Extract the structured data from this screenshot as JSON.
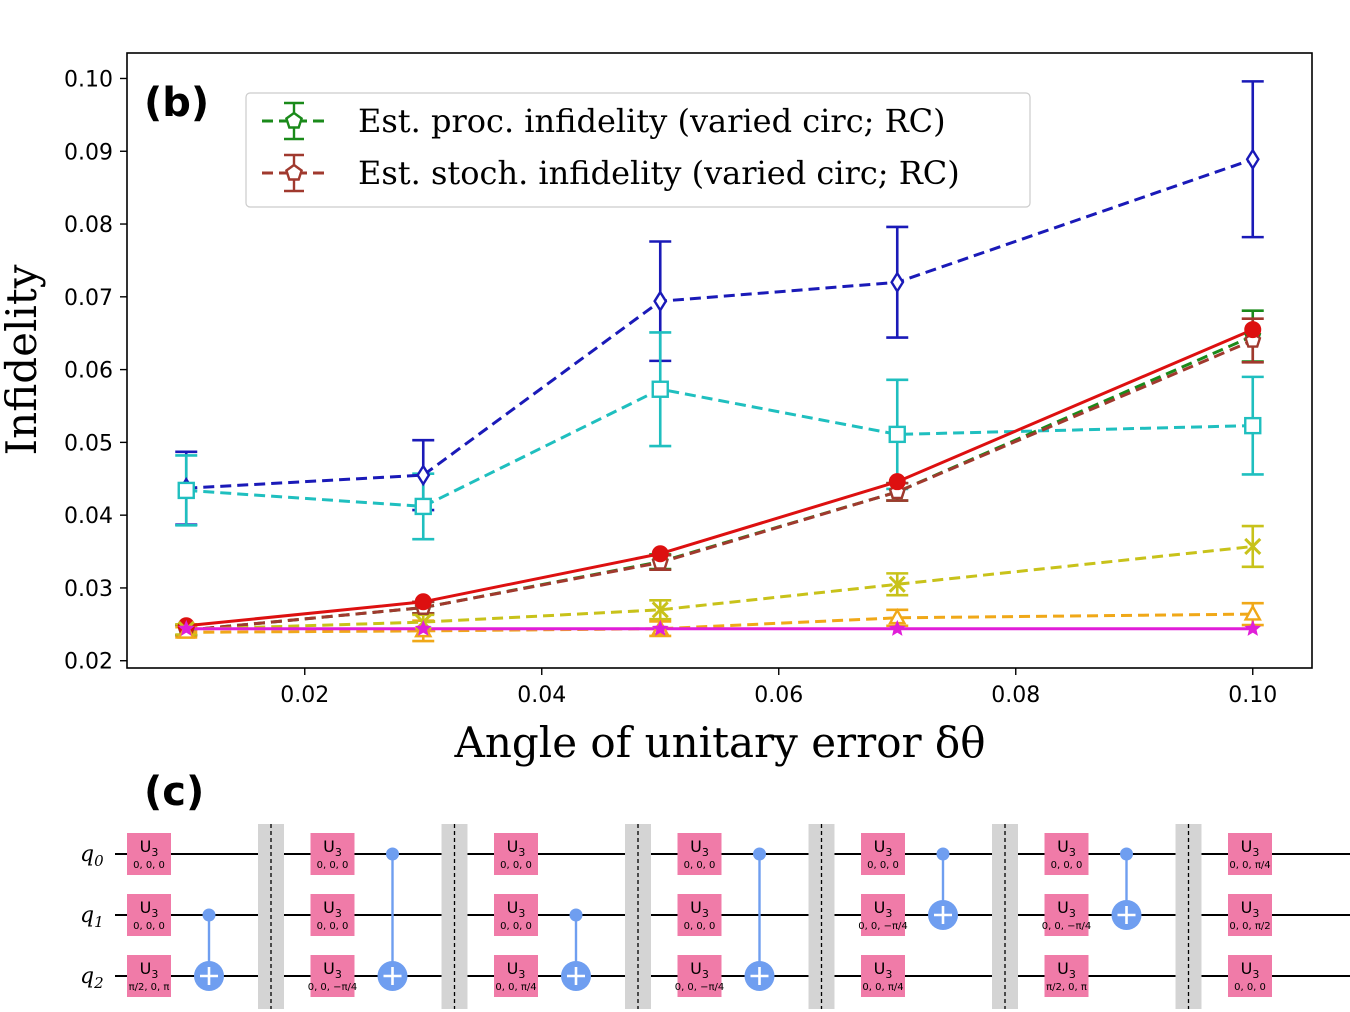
{
  "chart_data": {
    "type": "line",
    "panel_label": "(b)",
    "xlabel": "Angle of unitary error δθ",
    "ylabel": "Infidelity",
    "xlim": [
      0.005,
      0.105
    ],
    "ylim": [
      0.019,
      0.1035
    ],
    "xticks": [
      "0.02",
      "0.04",
      "0.06",
      "0.08",
      "0.10"
    ],
    "yticks": [
      "0.02",
      "0.03",
      "0.04",
      "0.05",
      "0.06",
      "0.07",
      "0.08",
      "0.09",
      "0.10"
    ],
    "legend_position": "upper-left",
    "grid": false,
    "x": [
      0.01,
      0.03,
      0.05,
      0.07,
      0.1
    ],
    "series": [
      {
        "style": "blue",
        "color": "#1a1ab8",
        "line": "dashed",
        "marker": "diamond",
        "values": [
          0.0437,
          0.0455,
          0.0694,
          0.072,
          0.0889
        ],
        "errors": [
          0.005,
          0.0048,
          0.0082,
          0.0076,
          0.0107
        ]
      },
      {
        "style": "cyan",
        "color": "#1fbfbf",
        "line": "dashed",
        "marker": "square",
        "values": [
          0.0434,
          0.0412,
          0.0573,
          0.0511,
          0.0523
        ],
        "errors": [
          0.0048,
          0.0045,
          0.0078,
          0.0075,
          0.0067
        ]
      },
      {
        "name": "Est. proc. infidelity (varied circ; RC)",
        "style": "green",
        "color": "#1a8a1a",
        "line": "dashed",
        "marker": "pentagon",
        "values": [
          0.0242,
          0.0273,
          0.0336,
          0.0432,
          0.0646
        ],
        "errors": [
          0.0007,
          0.0008,
          0.001,
          0.0012,
          0.0035
        ]
      },
      {
        "name": "Est. stoch. infidelity (varied circ; RC)",
        "style": "brown",
        "color": "#a0392e",
        "line": "dashed",
        "marker": "pentagon",
        "values": [
          0.0242,
          0.0273,
          0.0335,
          0.0432,
          0.064
        ],
        "errors": [
          0.0007,
          0.0008,
          0.001,
          0.0012,
          0.003
        ]
      },
      {
        "style": "red",
        "color": "#dd1010",
        "line": "solid",
        "marker": "circle",
        "values": [
          0.0248,
          0.0281,
          0.0347,
          0.0446,
          0.0655
        ],
        "errors": [
          0,
          0,
          0,
          0,
          0
        ]
      },
      {
        "style": "olive",
        "color": "#c8c21a",
        "line": "dashed",
        "marker": "x",
        "values": [
          0.0243,
          0.0253,
          0.027,
          0.0305,
          0.0357
        ],
        "errors": [
          0.0007,
          0.001,
          0.0013,
          0.0015,
          0.0028
        ]
      },
      {
        "style": "orange",
        "color": "#f0a818",
        "line": "dashed",
        "marker": "triangle",
        "values": [
          0.0239,
          0.0241,
          0.0244,
          0.0259,
          0.0264
        ],
        "errors": [
          0.0007,
          0.0014,
          0.001,
          0.0011,
          0.0015
        ]
      },
      {
        "style": "magenta",
        "color": "#e01ed8",
        "line": "solid",
        "marker": "star",
        "values": [
          0.0244,
          0.0244,
          0.0244,
          0.0244,
          0.0244
        ],
        "errors": [
          0,
          0,
          0,
          0,
          0
        ]
      }
    ]
  },
  "circuit": {
    "panel_label": "(c)",
    "qubits": [
      {
        "name": "q",
        "sub": "0"
      },
      {
        "name": "q",
        "sub": "1"
      },
      {
        "name": "q",
        "sub": "2"
      }
    ],
    "gate_name": "U",
    "gate_sub": "3",
    "colors": {
      "gate": "#f07ba8",
      "cnot": "#6f9ef0",
      "barrier": "#d4d4d4"
    },
    "blocks": [
      {
        "params": [
          "0, 0, 0",
          "0, 0, 0",
          "π/2, 0, π"
        ],
        "control": 1,
        "target": 2
      },
      {
        "params": [
          "0, 0, 0",
          "0, 0, 0",
          "0, 0, −π/4"
        ],
        "control": 0,
        "target": 2
      },
      {
        "params": [
          "0, 0, 0",
          "0, 0, 0",
          "0, 0, π/4"
        ],
        "control": 1,
        "target": 2
      },
      {
        "params": [
          "0, 0, 0",
          "0, 0, 0",
          "0, 0, −π/4"
        ],
        "control": 0,
        "target": 2
      },
      {
        "params": [
          "0, 0, 0",
          "0, 0, −π/4",
          "0, 0, π/4"
        ],
        "control": 0,
        "target": 1
      },
      {
        "params": [
          "0, 0, 0",
          "0, 0, −π/4",
          "π/2, 0, π"
        ],
        "control": 0,
        "target": 1
      },
      {
        "params": [
          "0, 0, π/4",
          "0, 0, π/2",
          "0, 0, 0"
        ],
        "control": null,
        "target": null
      }
    ]
  }
}
